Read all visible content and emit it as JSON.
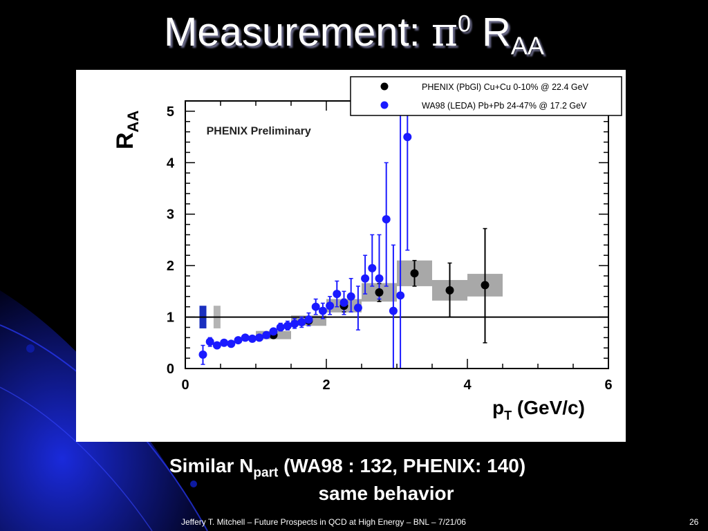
{
  "slide": {
    "title_main": "Measurement: ",
    "title_pi": "π",
    "title_sup": "0",
    "title_r": " R",
    "title_sub": "AA",
    "caption_part1": "Similar N",
    "caption_sub": "part",
    "caption_part2": " (WA98 : 132, PHENIX: 140)",
    "caption_line2": "same behavior",
    "footer": "Jeffery T. Mitchell – Future Prospects in QCD at High Energy – BNL – 7/21/06",
    "page_number": "26"
  },
  "chart_data": {
    "type": "scatter",
    "annotation": "PHENIX Preliminary",
    "ylabel_main": "R",
    "ylabel_sub": "AA",
    "xlabel_main": "p",
    "xlabel_sub": "T",
    "xlabel_rest": " (GeV/c)",
    "xlim": [
      0,
      6
    ],
    "ylim": [
      0,
      5.2
    ],
    "x_ticks": [
      "0",
      "2",
      "4",
      "6"
    ],
    "y_ticks": [
      "0",
      "1",
      "2",
      "3",
      "4",
      "5"
    ],
    "reference_line": 1,
    "legend_position": "top-right",
    "series": [
      {
        "name": "PHENIX (PbGl) Cu+Cu 0-10% @ 22.4 GeV",
        "color": "#000000",
        "points": [
          {
            "x": 1.25,
            "y": 0.65,
            "lo": 0.6,
            "hi": 0.7,
            "sys": 0.08
          },
          {
            "x": 1.75,
            "y": 0.93,
            "lo": 0.87,
            "hi": 0.99,
            "sys": 0.1
          },
          {
            "x": 2.25,
            "y": 1.22,
            "lo": 1.1,
            "hi": 1.35,
            "sys": 0.13
          },
          {
            "x": 2.75,
            "y": 1.48,
            "lo": 1.3,
            "hi": 1.65,
            "sys": 0.18
          },
          {
            "x": 3.25,
            "y": 1.85,
            "lo": 1.6,
            "hi": 2.1,
            "sys": 0.25
          },
          {
            "x": 3.75,
            "y": 1.52,
            "lo": 1.0,
            "hi": 2.05,
            "sys": 0.2
          },
          {
            "x": 4.25,
            "y": 1.62,
            "lo": 0.5,
            "hi": 2.72,
            "sys": 0.22
          }
        ]
      },
      {
        "name": "WA98 (LEDA) Pb+Pb 24-47% @ 17.2 GeV",
        "color": "#1a1aff",
        "points": [
          {
            "x": 0.25,
            "y": 0.27,
            "lo": 0.08,
            "hi": 0.45
          },
          {
            "x": 0.35,
            "y": 0.52,
            "lo": 0.43,
            "hi": 0.6
          },
          {
            "x": 0.45,
            "y": 0.45,
            "lo": 0.4,
            "hi": 0.5
          },
          {
            "x": 0.55,
            "y": 0.5,
            "lo": 0.46,
            "hi": 0.54
          },
          {
            "x": 0.65,
            "y": 0.48,
            "lo": 0.45,
            "hi": 0.51
          },
          {
            "x": 0.75,
            "y": 0.55,
            "lo": 0.52,
            "hi": 0.58
          },
          {
            "x": 0.85,
            "y": 0.6,
            "lo": 0.57,
            "hi": 0.63
          },
          {
            "x": 0.95,
            "y": 0.58,
            "lo": 0.55,
            "hi": 0.61
          },
          {
            "x": 1.05,
            "y": 0.6,
            "lo": 0.57,
            "hi": 0.63
          },
          {
            "x": 1.15,
            "y": 0.65,
            "lo": 0.6,
            "hi": 0.7
          },
          {
            "x": 1.25,
            "y": 0.72,
            "lo": 0.66,
            "hi": 0.78
          },
          {
            "x": 1.35,
            "y": 0.8,
            "lo": 0.73,
            "hi": 0.88
          },
          {
            "x": 1.45,
            "y": 0.83,
            "lo": 0.75,
            "hi": 0.92
          },
          {
            "x": 1.55,
            "y": 0.87,
            "lo": 0.78,
            "hi": 0.97
          },
          {
            "x": 1.65,
            "y": 0.9,
            "lo": 0.8,
            "hi": 1.0
          },
          {
            "x": 1.75,
            "y": 0.95,
            "lo": 0.83,
            "hi": 1.08
          },
          {
            "x": 1.85,
            "y": 1.2,
            "lo": 1.05,
            "hi": 1.35
          },
          {
            "x": 1.95,
            "y": 1.12,
            "lo": 0.97,
            "hi": 1.27
          },
          {
            "x": 2.05,
            "y": 1.22,
            "lo": 1.05,
            "hi": 1.4
          },
          {
            "x": 2.15,
            "y": 1.45,
            "lo": 1.2,
            "hi": 1.7
          },
          {
            "x": 2.25,
            "y": 1.28,
            "lo": 1.05,
            "hi": 1.5
          },
          {
            "x": 2.35,
            "y": 1.4,
            "lo": 1.1,
            "hi": 1.75
          },
          {
            "x": 2.45,
            "y": 1.18,
            "lo": 0.75,
            "hi": 1.6
          },
          {
            "x": 2.55,
            "y": 1.75,
            "lo": 1.45,
            "hi": 2.2
          },
          {
            "x": 2.65,
            "y": 1.95,
            "lo": 1.6,
            "hi": 2.6
          },
          {
            "x": 2.75,
            "y": 1.75,
            "lo": 1.35,
            "hi": 2.6
          },
          {
            "x": 2.85,
            "y": 2.9,
            "lo": 1.6,
            "hi": 4.0
          },
          {
            "x": 2.95,
            "y": 1.12,
            "lo": 0.0,
            "hi": 2.4
          },
          {
            "x": 3.05,
            "y": 1.42,
            "lo": 0.0,
            "hi": 5.1
          },
          {
            "x": 3.15,
            "y": 4.5,
            "lo": 2.3,
            "hi": 5.2
          }
        ]
      }
    ],
    "normalization_boxes": [
      {
        "series": "WA98",
        "x": 0.25,
        "lo": 0.78,
        "hi": 1.22,
        "color": "#1a2fbf"
      },
      {
        "series": "PHENIX",
        "x": 0.45,
        "lo": 0.78,
        "hi": 1.22,
        "color": "#b4b4b4"
      }
    ]
  }
}
